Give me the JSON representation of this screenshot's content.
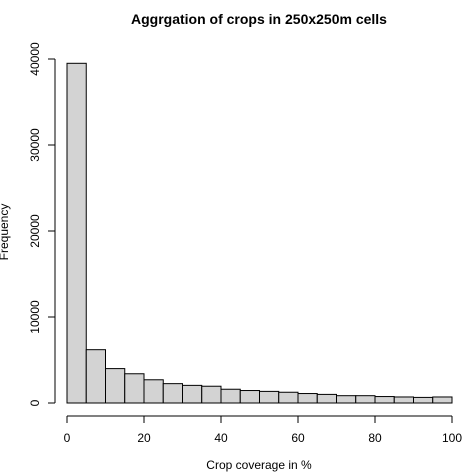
{
  "chart_data": {
    "type": "bar",
    "title": "Aggrgation of crops in 250x250m cells",
    "xlabel": "Crop coverage in %",
    "ylabel": "Frequency",
    "bin_width": 5,
    "bins": [
      {
        "x0": 0,
        "x1": 5,
        "value": 39500
      },
      {
        "x0": 5,
        "x1": 10,
        "value": 6200
      },
      {
        "x0": 10,
        "x1": 15,
        "value": 4000
      },
      {
        "x0": 15,
        "x1": 20,
        "value": 3400
      },
      {
        "x0": 20,
        "x1": 25,
        "value": 2700
      },
      {
        "x0": 25,
        "x1": 30,
        "value": 2250
      },
      {
        "x0": 30,
        "x1": 35,
        "value": 2050
      },
      {
        "x0": 35,
        "x1": 40,
        "value": 1950
      },
      {
        "x0": 40,
        "x1": 45,
        "value": 1600
      },
      {
        "x0": 45,
        "x1": 50,
        "value": 1450
      },
      {
        "x0": 50,
        "x1": 55,
        "value": 1350
      },
      {
        "x0": 55,
        "x1": 60,
        "value": 1250
      },
      {
        "x0": 60,
        "x1": 65,
        "value": 1100
      },
      {
        "x0": 65,
        "x1": 70,
        "value": 1000
      },
      {
        "x0": 70,
        "x1": 75,
        "value": 850
      },
      {
        "x0": 75,
        "x1": 80,
        "value": 850
      },
      {
        "x0": 80,
        "x1": 85,
        "value": 750
      },
      {
        "x0": 85,
        "x1": 90,
        "value": 700
      },
      {
        "x0": 90,
        "x1": 95,
        "value": 650
      },
      {
        "x0": 95,
        "x1": 100,
        "value": 700
      }
    ],
    "xlim": [
      0,
      100
    ],
    "ylim": [
      0,
      40000
    ],
    "xticks": [
      0,
      20,
      40,
      60,
      80,
      100
    ],
    "yticks": [
      0,
      10000,
      20000,
      30000,
      40000
    ],
    "grid": false,
    "bar_fill": "#d3d3d3",
    "bar_stroke": "#000000"
  }
}
